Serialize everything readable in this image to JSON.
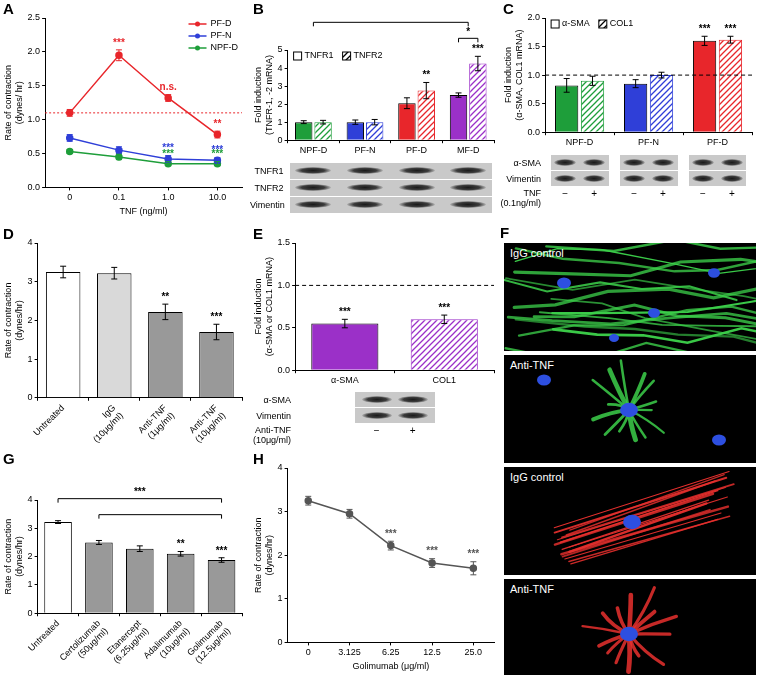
{
  "chart_data": [
    {
      "panel": "A",
      "type": "line",
      "x_label": "TNF (ng/ml)",
      "y_label": "Rate of contraction\n(dynes/ hr)",
      "categories": [
        "0",
        "0.1",
        "1.0",
        "10.0"
      ],
      "series": [
        {
          "name": "PF-D",
          "color": "#e8262b",
          "marker": "circle",
          "values": [
            1.1,
            1.95,
            1.32,
            0.78
          ],
          "errors": [
            0.05,
            0.08,
            0.05,
            0.05
          ],
          "marks": [
            null,
            "***",
            "n.s.",
            "**"
          ]
        },
        {
          "name": "PF-N",
          "color": "#2f3fd8",
          "marker": "circle",
          "values": [
            0.73,
            0.55,
            0.42,
            0.4
          ],
          "errors": [
            0.05,
            0.05,
            0.05,
            0.04
          ],
          "marks": [
            null,
            null,
            "***",
            "***"
          ]
        },
        {
          "name": "NPF-D",
          "color": "#1e9e3a",
          "marker": "circle",
          "values": [
            0.53,
            0.45,
            0.35,
            0.35
          ],
          "errors": [
            0.03,
            0.04,
            0.03,
            0.03
          ],
          "marks": [
            null,
            null,
            "***",
            "***"
          ]
        }
      ],
      "reference_lines": [
        {
          "value": 1.1,
          "color": "#e8262b",
          "line_style": "dotted"
        }
      ],
      "ylim": [
        0,
        2.5
      ],
      "yticks": [
        {
          "value": 0,
          "label": "0.0"
        },
        {
          "value": 0.5,
          "label": "0.5"
        },
        {
          "value": 1,
          "label": "1.0"
        },
        {
          "value": 1.5,
          "label": "1.5"
        },
        {
          "value": 2,
          "label": "2.0"
        },
        {
          "value": 2.5,
          "label": "2.5"
        }
      ],
      "legend": "upper right",
      "grid": false
    },
    {
      "panel": "B",
      "type": "bar",
      "y_label": "Fold induction\n(TNFR-1, -2 mRNA)",
      "categories": [
        "NPF-D",
        "PF-N",
        "PF-D",
        "MF-D"
      ],
      "series": [
        {
          "name": "TNFR1",
          "colors": [
            "#1e9e3a",
            "#2f3fd8",
            "#e8262b",
            "#9b30c8"
          ],
          "values": [
            1.0,
            1.0,
            2.05,
            2.5
          ],
          "errors": [
            0.08,
            0.12,
            0.3,
            0.12
          ]
        },
        {
          "name": "TNFR2",
          "colors": [
            "#1e9e3a",
            "#2f3fd8",
            "#e8262b",
            "#9b30c8"
          ],
          "values": [
            1.0,
            1.0,
            2.75,
            4.25
          ],
          "errors": [
            0.1,
            0.15,
            0.45,
            0.4
          ],
          "marks": [
            null,
            null,
            "**",
            "***"
          ]
        }
      ],
      "brackets": [
        {
          "categories": [
            "NPF-D",
            "MF-D"
          ]
        },
        {
          "categories": [
            "MF-D"
          ],
          "text": "*"
        }
      ],
      "ylim": [
        0,
        5
      ],
      "yticks": [
        0,
        1,
        2,
        3,
        4,
        5
      ],
      "legend": "upper left",
      "grid": false
    },
    {
      "panel": "C",
      "type": "bar",
      "y_label": "Fold induction\n(α-SMA, COL1 mRNA)",
      "categories": [
        "NPF-D",
        "PF-N",
        "PF-D"
      ],
      "series": [
        {
          "name": "α-SMA",
          "colors": [
            "#1e9e3a",
            "#2f3fd8",
            "#e8262b"
          ],
          "values": [
            0.82,
            0.85,
            1.6
          ],
          "errors": [
            0.12,
            0.07,
            0.08
          ],
          "marks": [
            null,
            null,
            "***"
          ]
        },
        {
          "name": "COL1",
          "colors": [
            "#1e9e3a",
            "#2f3fd8",
            "#e8262b"
          ],
          "values": [
            0.9,
            1.0,
            1.62
          ],
          "errors": [
            0.08,
            0.05,
            0.06
          ],
          "marks": [
            null,
            null,
            "***"
          ]
        }
      ],
      "reference_lines": [
        {
          "value": 1.0,
          "color": "#000000",
          "line_style": "dashed"
        }
      ],
      "ylim": [
        0,
        2
      ],
      "yticks": [
        {
          "value": 0,
          "label": "0.0"
        },
        {
          "value": 0.5,
          "label": "0.5"
        },
        {
          "value": 1,
          "label": "1.0"
        },
        {
          "value": 1.5,
          "label": "1.5"
        },
        {
          "value": 2,
          "label": "2.0"
        }
      ],
      "legend": "upper left",
      "grid": false
    },
    {
      "panel": "D",
      "type": "bar",
      "y_label": "Rate of contraction\n(dynes/hr)",
      "categories": [
        "Untreated",
        "IgG (10μg/ml)",
        "Anti-TNF (1μg/ml)",
        "Anti-TNF (10μg/ml)"
      ],
      "values": [
        3.25,
        3.22,
        2.22,
        1.7
      ],
      "errors": [
        0.15,
        0.15,
        0.2,
        0.2
      ],
      "marks": [
        null,
        null,
        "**",
        "***"
      ],
      "colors": [
        "#ffffff",
        "#d9d9d9",
        "#999999",
        "#999999"
      ],
      "ylim": [
        0,
        4
      ],
      "yticks": [
        0,
        1,
        2,
        3,
        4
      ],
      "grid": false
    },
    {
      "panel": "E",
      "type": "bar",
      "y_label": "Fold induction\n(α-SMA or COL1 mRNA)",
      "categories": [
        "α-SMA",
        "COL1"
      ],
      "values": [
        0.55,
        0.6
      ],
      "errors": [
        0.05,
        0.05
      ],
      "marks": [
        "***",
        "***"
      ],
      "colors": [
        "#9b30c8",
        "#9b30c8"
      ],
      "reference_lines": [
        {
          "value": 1.0,
          "color": "#000000",
          "line_style": "dashed"
        }
      ],
      "ylim": [
        0,
        1.5
      ],
      "yticks": [
        {
          "value": 0,
          "label": "0.0"
        },
        {
          "value": 0.5,
          "label": "0.5"
        },
        {
          "value": 1,
          "label": "1.0"
        },
        {
          "value": 1.5,
          "label": "1.5"
        }
      ],
      "grid": false
    },
    {
      "panel": "G",
      "type": "bar",
      "y_label": "Rate of contraction\n(dynes/hr)",
      "categories": [
        "Untreated",
        "Certolizumab (50μg/ml)",
        "Etanercept (6.25μg/ml)",
        "Adalimumab (10μg/ml)",
        "Golimumab (12.5μg/ml)"
      ],
      "values": [
        3.22,
        2.5,
        2.28,
        2.1,
        1.88
      ],
      "errors": [
        0.05,
        0.07,
        0.1,
        0.08,
        0.08
      ],
      "marks": [
        null,
        null,
        null,
        "**",
        "***"
      ],
      "colors": [
        "#ffffff",
        "#999999",
        "#999999",
        "#999999",
        "#999999"
      ],
      "brackets": [
        {
          "categories": [
            "Untreated",
            "Golimumab (12.5μg/ml)"
          ],
          "text": "***"
        },
        {
          "categories": [
            "Certolizumab (50μg/ml)",
            "Golimumab (12.5μg/ml)"
          ]
        }
      ],
      "ylim": [
        0,
        4
      ],
      "yticks": [
        0,
        1,
        2,
        3,
        4
      ],
      "grid": false
    },
    {
      "panel": "H",
      "type": "line",
      "x_label": "Golimumab (μg/ml)",
      "y_label": "Rate of contraction\n(dynes/hr)",
      "categories": [
        "0",
        "3.125",
        "6.25",
        "12.5",
        "25.0"
      ],
      "series": [
        {
          "color": "#555555",
          "marker": "circle",
          "values": [
            3.25,
            2.95,
            2.22,
            1.82,
            1.7
          ],
          "errors": [
            0.1,
            0.1,
            0.1,
            0.1,
            0.15
          ],
          "marks": [
            null,
            null,
            "***",
            "***",
            "***"
          ]
        }
      ],
      "ylim": [
        0,
        4
      ],
      "yticks": [
        0,
        1,
        2,
        3,
        4
      ],
      "grid": false
    }
  ],
  "blots": [
    {
      "panel": "B",
      "rows": [
        "TNFR1",
        "TNFR2",
        "Vimentin"
      ]
    },
    {
      "panel": "C",
      "rows": [
        "α-SMA",
        "Vimentin"
      ],
      "treatment": "TNF\n(0.1ng/ml)",
      "lanes": [
        "−",
        "+"
      ]
    },
    {
      "panel": "E",
      "rows": [
        "α-SMA",
        "Vimentin"
      ],
      "treatment": "Anti-TNF\n(10μg/ml)",
      "lanes": [
        "−",
        "+"
      ]
    }
  ],
  "images": {
    "panel": "F",
    "labels": [
      "IgG control",
      "Anti-TNF",
      "IgG control",
      "Anti-TNF"
    ]
  }
}
